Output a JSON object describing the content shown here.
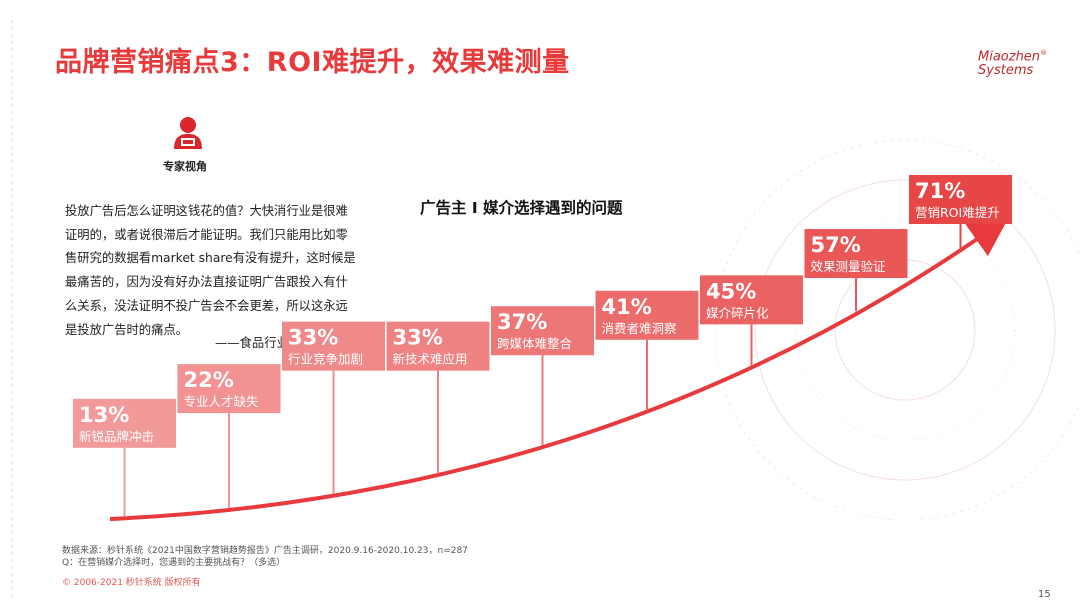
{
  "header": {
    "title": "品牌营销痛点3：ROI难提升，效果难测量"
  },
  "logo": {
    "line1": "Miaozhen",
    "line2": "Systems",
    "mark": "®"
  },
  "expert": {
    "icon": "expert-person-icon",
    "label": "专家视角",
    "quote": "投放广告后怎么证明这钱花的值？大快消行业是很难证明的，或者说很滞后才能证明。我们只能用比如零售研究的数据看market share有没有提升，这时候是最痛苦的，因为没有好办法直接证明广告跟投入有什么关系，没法证明不投广告会不会更差，所以这永远是投放广告时的痛点。",
    "source": "——食品行业广告主"
  },
  "chart_data": {
    "type": "bar",
    "title": "广告主 I 媒介选择遇到的问题",
    "categories": [
      "新锐品牌冲击",
      "专业人才缺失",
      "行业竞争加剧",
      "新技术难应用",
      "跨媒体难整合",
      "消费者难洞察",
      "媒介碎片化",
      "效果测量验证",
      "营销ROI难提升"
    ],
    "values": [
      13,
      22,
      33,
      33,
      37,
      41,
      45,
      57,
      71
    ],
    "value_labels": [
      "13%",
      "22%",
      "33%",
      "33%",
      "37%",
      "41%",
      "45%",
      "57%",
      "71%"
    ],
    "unit": "%",
    "colors": [
      "#f29a9a",
      "#f29292",
      "#f08a8a",
      "#ef8282",
      "#ed7777",
      "#ec6c6c",
      "#ea6262",
      "#e95757",
      "#e74646"
    ],
    "trend_color": "#e8393c"
  },
  "footer": {
    "source": "数据来源：秒针系统《2021中国数字营销趋势报告》广告主调研，2020.9.16-2020.10.23，n=287",
    "question": "Q：在营销媒介选择时，您遇到的主要挑战有？（多选）",
    "copyright": "© 2006-2021 秒针系统 版权所有",
    "page": "15"
  },
  "colors": {
    "accent": "#e83a3a",
    "text": "#222222"
  }
}
